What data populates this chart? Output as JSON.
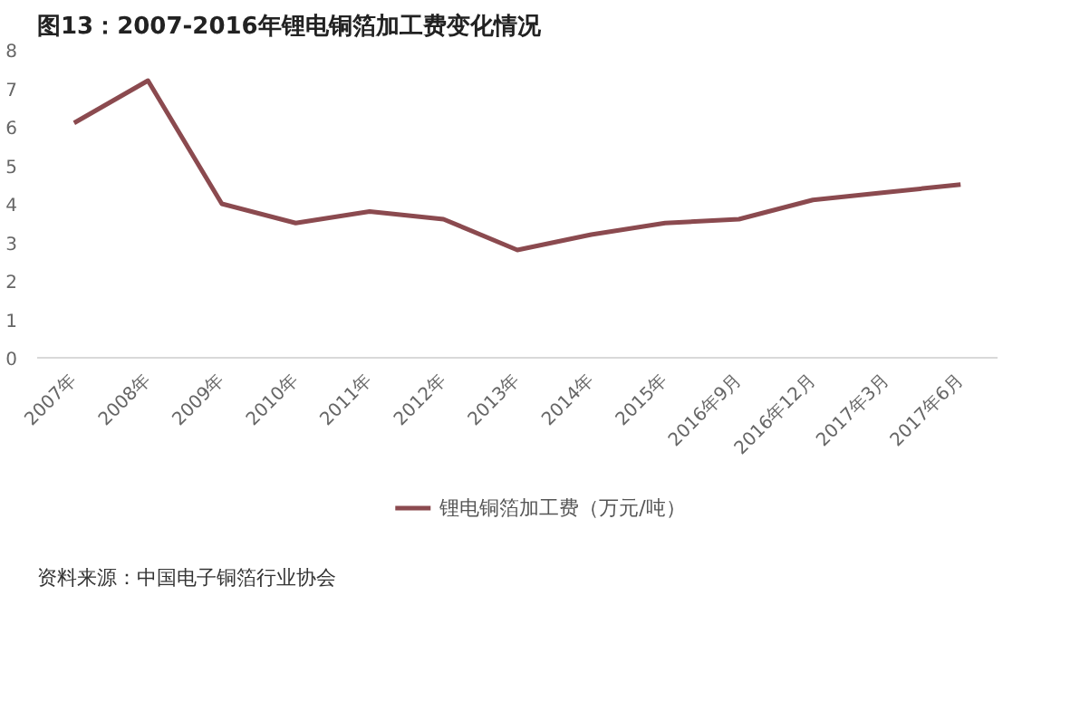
{
  "chart_data": {
    "type": "line",
    "title": "图13：2007-2016年锂电铜箔加工费变化情况",
    "categories": [
      "2007年",
      "2008年",
      "2009年",
      "2010年",
      "2011年",
      "2012年",
      "2013年",
      "2014年",
      "2015年",
      "2016年9月",
      "2016年12月",
      "2017年3月",
      "2017年6月"
    ],
    "series": [
      {
        "name": "锂电铜箔加工费（万元/吨）",
        "color": "#8b4a4f",
        "values": [
          6.1,
          7.2,
          4.0,
          3.5,
          3.8,
          3.6,
          2.8,
          3.2,
          3.5,
          3.6,
          4.1,
          4.3,
          4.5
        ]
      }
    ],
    "ylim": [
      0,
      8
    ],
    "yticks": [
      0,
      1,
      2,
      3,
      4,
      5,
      6,
      7,
      8
    ],
    "grid": false,
    "legend": "bottom",
    "annotations": [
      "资料来源：中国电子铜箔行业协会"
    ]
  }
}
